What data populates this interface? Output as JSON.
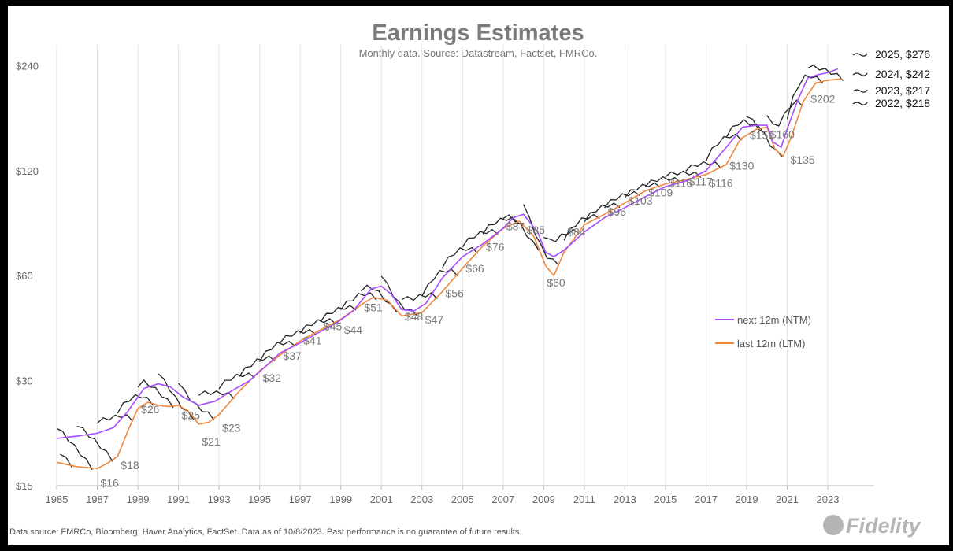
{
  "title": "Earnings Estimates",
  "subtitle": "Monthly data.  Source: Datastream, Factset, FMRCo.",
  "footer": "Data source: FMRCo, Bloomberg, Haver Analytics, FactSet. Data as of 10/8/2023. Past performance is no guarantee of future results.",
  "logo": "Fidelity",
  "chart_data": {
    "type": "line",
    "title": "Earnings Estimates",
    "y_scale": "log",
    "ylim": [
      15,
      290
    ],
    "xlim": [
      1985,
      2024.9
    ],
    "y_ticks": [
      15,
      30,
      60,
      120,
      240
    ],
    "y_tick_labels": [
      "$15",
      "$30",
      "$60",
      "$120",
      "$240"
    ],
    "x_ticks": [
      1985,
      1987,
      1989,
      1991,
      1993,
      1995,
      1997,
      1999,
      2001,
      2003,
      2005,
      2007,
      2009,
      2011,
      2013,
      2015,
      2017,
      2019,
      2021,
      2023
    ],
    "grid": "vertical",
    "legend_position": "right",
    "colors": {
      "ntm": "#a64dff",
      "ltm": "#f0883e",
      "estimates": "#222222",
      "grid": "#e3e3e3"
    },
    "series": [
      {
        "name": "next 12m (NTM)",
        "color": "#a64dff",
        "x": [
          1985,
          1986,
          1987,
          1987.8,
          1988.5,
          1989.3,
          1990,
          1990.6,
          1991.2,
          1992,
          1992.8,
          1993.6,
          1994.5,
          1995.3,
          1996,
          1997,
          1998,
          1998.8,
          1999.6,
          2000.5,
          2001,
          2001.5,
          2002,
          2002.6,
          2003.2,
          2004,
          2005,
          2006,
          2007,
          2007.5,
          2008,
          2008.7,
          2009.1,
          2009.5,
          2010,
          2011,
          2012,
          2013,
          2014,
          2015,
          2016,
          2017,
          2018,
          2018.8,
          2019.5,
          2020,
          2020.3,
          2020.7,
          2021,
          2021.5,
          2022,
          2022.5,
          2023,
          2023.5
        ],
        "values": [
          20.5,
          20.8,
          21.2,
          22,
          24.5,
          28.5,
          29.4,
          28.8,
          27,
          25.5,
          26.2,
          28,
          30,
          33,
          36,
          38.5,
          41.5,
          44,
          47.5,
          55,
          56,
          53,
          48,
          47.5,
          50,
          59,
          68,
          74,
          82,
          88,
          90,
          80,
          70,
          68,
          71,
          80,
          88,
          94,
          101,
          108,
          112,
          120,
          140,
          160,
          162,
          162,
          145,
          140,
          158,
          190,
          221,
          226,
          229,
          235
        ]
      },
      {
        "name": "last 12m (LTM)",
        "color": "#f0883e",
        "x": [
          1985,
          1986,
          1987,
          1987.5,
          1988,
          1988.5,
          1989,
          1989.5,
          1990,
          1990.5,
          1991,
          1991.5,
          1992,
          1992.5,
          1993,
          1994,
          1995,
          1996,
          1997,
          1998,
          1999,
          2000,
          2000.6,
          2001.3,
          2002,
          2003,
          2004,
          2005,
          2006,
          2007,
          2007.8,
          2008.5,
          2009.1,
          2009.5,
          2010,
          2011,
          2012,
          2013,
          2014,
          2015,
          2016,
          2017,
          2018,
          2018.7,
          2019.5,
          2020,
          2020.4,
          2020.8,
          2021.2,
          2021.8,
          2022.4,
          2023,
          2023.7
        ],
        "values": [
          17.5,
          17,
          16.8,
          17.4,
          18.2,
          21.5,
          25,
          26,
          25.5,
          25.3,
          25.5,
          24.5,
          22.5,
          22.8,
          24,
          28,
          32,
          35.5,
          39,
          42,
          45,
          49.5,
          52,
          51,
          46,
          47,
          54,
          63,
          73,
          82,
          86,
          78,
          64,
          60,
          70,
          84,
          90,
          97,
          105,
          110,
          113,
          117,
          125,
          148,
          158,
          160,
          138,
          132,
          150,
          190,
          214,
          218,
          220
        ]
      }
    ],
    "data_labels": [
      {
        "x": 1987,
        "y": 16,
        "text": "$16"
      },
      {
        "x": 1988,
        "y": 18,
        "text": "$18"
      },
      {
        "x": 1989,
        "y": 26,
        "text": "$26"
      },
      {
        "x": 1991,
        "y": 25,
        "text": "$25"
      },
      {
        "x": 1992,
        "y": 21,
        "text": "$21"
      },
      {
        "x": 1993,
        "y": 23,
        "text": "$23"
      },
      {
        "x": 1995,
        "y": 32,
        "text": "$32"
      },
      {
        "x": 1996,
        "y": 37,
        "text": "$37"
      },
      {
        "x": 1997,
        "y": 41,
        "text": "$41"
      },
      {
        "x": 1998,
        "y": 45,
        "text": "$45"
      },
      {
        "x": 1999,
        "y": 44,
        "text": "$44"
      },
      {
        "x": 2000,
        "y": 51,
        "text": "$51"
      },
      {
        "x": 2002,
        "y": 48,
        "text": "$48"
      },
      {
        "x": 2003,
        "y": 47,
        "text": "$47"
      },
      {
        "x": 2004,
        "y": 56,
        "text": "$56"
      },
      {
        "x": 2005,
        "y": 66,
        "text": "$66"
      },
      {
        "x": 2006,
        "y": 76,
        "text": "$76"
      },
      {
        "x": 2007,
        "y": 87,
        "text": "$87"
      },
      {
        "x": 2008,
        "y": 85,
        "text": "$85"
      },
      {
        "x": 2009,
        "y": 60,
        "text": "$60"
      },
      {
        "x": 2010,
        "y": 84,
        "text": "$84"
      },
      {
        "x": 2012,
        "y": 96,
        "text": "$96"
      },
      {
        "x": 2013,
        "y": 103,
        "text": "$103"
      },
      {
        "x": 2014,
        "y": 109,
        "text": "$109"
      },
      {
        "x": 2015,
        "y": 116,
        "text": "$116"
      },
      {
        "x": 2016,
        "y": 117,
        "text": "$117"
      },
      {
        "x": 2017,
        "y": 116,
        "text": "$116"
      },
      {
        "x": 2018,
        "y": 130,
        "text": "$130"
      },
      {
        "x": 2019,
        "y": 159,
        "text": "$159"
      },
      {
        "x": 2020,
        "y": 160,
        "text": "$160"
      },
      {
        "x": 2021,
        "y": 135,
        "text": "$135"
      },
      {
        "x": 2022,
        "y": 202,
        "text": "$202"
      }
    ],
    "end_labels": [
      {
        "text": "2025, $276",
        "value": 276
      },
      {
        "text": "2024, $242",
        "value": 242
      },
      {
        "text": "2023, $217",
        "value": 217
      },
      {
        "text": "2022, $218",
        "value": 218
      }
    ]
  }
}
